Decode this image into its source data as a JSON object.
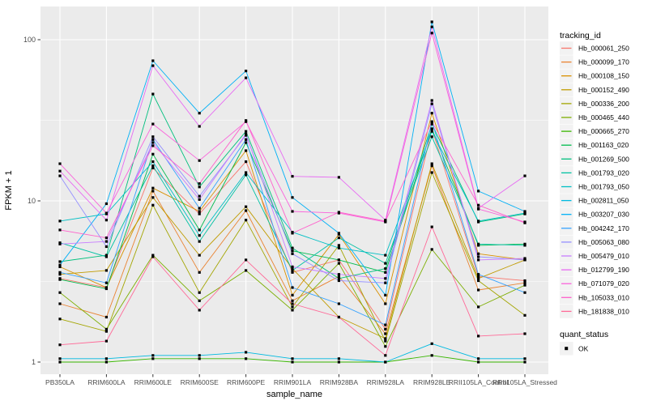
{
  "chart_data": {
    "type": "line",
    "title": "",
    "xlabel": "sample_name",
    "ylabel": "FPKM + 1",
    "y_scale": "log10",
    "ylim": [
      1,
      140
    ],
    "y_ticks": [
      1,
      10,
      100
    ],
    "y_tick_labels": [
      "1",
      "10",
      "100"
    ],
    "y_minor_ticks": [
      3.1623,
      31.623
    ],
    "grid": true,
    "legend_position": "right",
    "legend_title": "tracking_id",
    "panel_bg": "#EBEBEB",
    "gridline_color": "#FFFFFF",
    "tick_label_color": "#4D4D4D",
    "marker": "small-black-square",
    "quant_status": {
      "title": "quant_status",
      "items": [
        "OK"
      ],
      "marker_color": "#000000"
    },
    "categories": [
      "PB350LA",
      "RRIM600LA",
      "RRIM600LE",
      "RRIM600SE",
      "RRIM600PE",
      "RRIM901LA",
      "RRIM928BA",
      "RRIM928LA",
      "RRIM928LE",
      "RRII105LA_Control",
      "RRII105LA_Stressed"
    ],
    "series": [
      {
        "name": "Hb_000061_250",
        "color": "#F8766D",
        "values": [
          3.3,
          2.9,
          16.0,
          8.3,
          17.5,
          3.6,
          4.3,
          1.6,
          28,
          3.4,
          3.2
        ]
      },
      {
        "name": "Hb_000099_170",
        "color": "#EA8331",
        "values": [
          2.3,
          1.9,
          11.5,
          3.6,
          8.7,
          2.4,
          3.4,
          1.5,
          16.5,
          2.8,
          3.1
        ]
      },
      {
        "name": "Hb_000108_150",
        "color": "#D89000",
        "values": [
          3.9,
          2.9,
          12.0,
          8.6,
          20.5,
          2.6,
          6.2,
          2.3,
          35,
          4.7,
          4.3
        ]
      },
      {
        "name": "Hb_000152_490",
        "color": "#C09B00",
        "values": [
          3.5,
          3.7,
          10.5,
          4.6,
          9.2,
          3.8,
          1.9,
          1.4,
          17,
          3.3,
          4.3
        ]
      },
      {
        "name": "Hb_000336_200",
        "color": "#A3A500",
        "values": [
          1.85,
          1.55,
          9.4,
          2.7,
          7.6,
          2.2,
          5.3,
          1.35,
          15,
          3.2,
          1.95
        ]
      },
      {
        "name": "Hb_000465_440",
        "color": "#7CAE00",
        "values": [
          2.7,
          1.6,
          4.6,
          2.4,
          3.7,
          2.1,
          4.1,
          1.25,
          5.0,
          2.2,
          3.0
        ]
      },
      {
        "name": "Hb_000665_270",
        "color": "#39B600",
        "values": [
          1.0,
          1.0,
          1.05,
          1.05,
          1.05,
          1.0,
          1.0,
          1.0,
          1.1,
          1.0,
          1.0
        ]
      },
      {
        "name": "Hb_001163_020",
        "color": "#00BB4E",
        "values": [
          3.25,
          2.85,
          19.5,
          6.6,
          23,
          4.9,
          4.3,
          3.6,
          28,
          5.3,
          5.4
        ]
      },
      {
        "name": "Hb_001269_500",
        "color": "#00BF7D",
        "values": [
          4.2,
          4.6,
          46,
          12.2,
          27,
          5.1,
          3.3,
          3.8,
          30,
          7.4,
          8.3
        ]
      },
      {
        "name": "Hb_001793_020",
        "color": "#00C1A3",
        "values": [
          5.5,
          4.5,
          16.5,
          5.6,
          14.5,
          3.7,
          5.9,
          4.1,
          25,
          5.4,
          5.3
        ]
      },
      {
        "name": "Hb_001793_050",
        "color": "#00BFC4",
        "values": [
          7.5,
          8.3,
          17.5,
          6.1,
          15.0,
          6.4,
          5.1,
          4.6,
          27,
          7.5,
          8.4
        ]
      },
      {
        "name": "Hb_002811_050",
        "color": "#00BAE0",
        "values": [
          1.05,
          1.05,
          1.1,
          1.1,
          1.15,
          1.05,
          1.05,
          1.0,
          1.3,
          1.05,
          1.05
        ]
      },
      {
        "name": "Hb_003207_030",
        "color": "#00B0F6",
        "values": [
          4.0,
          9.6,
          74,
          35,
          64,
          10.5,
          6.3,
          2.6,
          129,
          11.5,
          8.6
        ]
      },
      {
        "name": "Hb_004242_170",
        "color": "#35A2FF",
        "values": [
          3.6,
          3.1,
          24,
          9.0,
          24,
          2.9,
          2.3,
          1.7,
          31,
          3.5,
          2.7
        ]
      },
      {
        "name": "Hb_005063_080",
        "color": "#9590FF",
        "values": [
          14.3,
          5.2,
          25,
          10.7,
          25.5,
          4.7,
          3.2,
          3.1,
          40,
          4.5,
          4.3
        ]
      },
      {
        "name": "Hb_005479_010",
        "color": "#C77CFF",
        "values": [
          5.4,
          5.6,
          23,
          10.2,
          26,
          3.9,
          3.5,
          3.3,
          42,
          4.3,
          4.4
        ]
      },
      {
        "name": "Hb_012799_190",
        "color": "#E76BF3",
        "values": [
          15.3,
          7.6,
          69,
          29,
          58,
          14.2,
          14.0,
          7.6,
          120,
          9.0,
          14.3
        ]
      },
      {
        "name": "Hb_071079_020",
        "color": "#FA62DB",
        "values": [
          17.0,
          8.4,
          30,
          17.8,
          31,
          8.6,
          8.4,
          7.4,
          110,
          8.9,
          7.4
        ]
      },
      {
        "name": "Hb_105033_010",
        "color": "#FF61CC",
        "values": [
          6.6,
          5.9,
          22,
          12.8,
          31.5,
          6.3,
          8.5,
          7.5,
          31,
          9.4,
          7.3
        ]
      },
      {
        "name": "Hb_181838_010",
        "color": "#FF6A98",
        "values": [
          1.28,
          1.35,
          4.5,
          2.1,
          4.3,
          2.3,
          1.9,
          1.1,
          6.9,
          1.45,
          1.5
        ]
      }
    ]
  }
}
